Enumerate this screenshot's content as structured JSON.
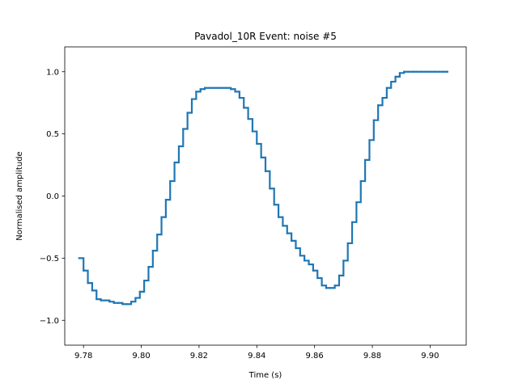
{
  "chart_data": {
    "type": "line",
    "title": "Pavadol_10R Event: noise #5",
    "xlabel": "Time (s)",
    "ylabel": "Normalised amplitude",
    "xlim": [
      9.7735,
      9.9125
    ],
    "ylim": [
      -1.2,
      1.2
    ],
    "xticks": [
      9.78,
      9.8,
      9.82,
      9.84,
      9.86,
      9.88,
      9.9
    ],
    "xtick_labels": [
      "9.78",
      "9.80",
      "9.82",
      "9.84",
      "9.86",
      "9.88",
      "9.90"
    ],
    "yticks": [
      -1.0,
      -0.5,
      0.0,
      0.5,
      1.0
    ],
    "ytick_labels": [
      "−1.0",
      "−0.5",
      "0.0",
      "0.5",
      "1.0"
    ],
    "grid": false,
    "series": [
      {
        "color": "#1f77b4",
        "x": [
          9.7785,
          9.78,
          9.7815,
          9.783,
          9.7845,
          9.786,
          9.7875,
          9.789,
          9.7905,
          9.792,
          9.7935,
          9.795,
          9.7965,
          9.798,
          9.7995,
          9.801,
          9.8025,
          9.804,
          9.8055,
          9.807,
          9.8085,
          9.81,
          9.8115,
          9.813,
          9.8145,
          9.816,
          9.8175,
          9.819,
          9.8205,
          9.822,
          9.8235,
          9.825,
          9.8265,
          9.828,
          9.8295,
          9.831,
          9.8325,
          9.834,
          9.8355,
          9.837,
          9.8385,
          9.84,
          9.8415,
          9.843,
          9.8445,
          9.846,
          9.8475,
          9.849,
          9.8505,
          9.852,
          9.8535,
          9.855,
          9.8565,
          9.858,
          9.8595,
          9.861,
          9.8625,
          9.864,
          9.8655,
          9.867,
          9.8685,
          9.87,
          9.8715,
          9.873,
          9.8745,
          9.876,
          9.8775,
          9.879,
          9.8805,
          9.882,
          9.8835,
          9.885,
          9.8865,
          9.888,
          9.8895,
          9.891,
          9.8925,
          9.894,
          9.8955,
          9.897,
          9.8985,
          9.9,
          9.9015,
          9.903,
          9.9045,
          9.906
        ],
        "values": [
          -0.5,
          -0.6,
          -0.7,
          -0.76,
          -0.83,
          -0.84,
          -0.84,
          -0.85,
          -0.86,
          -0.86,
          -0.87,
          -0.87,
          -0.85,
          -0.82,
          -0.77,
          -0.68,
          -0.57,
          -0.44,
          -0.31,
          -0.17,
          -0.03,
          0.12,
          0.27,
          0.4,
          0.54,
          0.67,
          0.78,
          0.84,
          0.86,
          0.87,
          0.87,
          0.87,
          0.87,
          0.87,
          0.87,
          0.86,
          0.84,
          0.79,
          0.71,
          0.62,
          0.52,
          0.42,
          0.31,
          0.2,
          0.06,
          -0.07,
          -0.17,
          -0.24,
          -0.3,
          -0.36,
          -0.42,
          -0.48,
          -0.52,
          -0.55,
          -0.6,
          -0.66,
          -0.72,
          -0.74,
          -0.74,
          -0.72,
          -0.64,
          -0.52,
          -0.38,
          -0.21,
          -0.05,
          0.12,
          0.29,
          0.45,
          0.61,
          0.73,
          0.79,
          0.87,
          0.92,
          0.96,
          0.99,
          1.0,
          1.0,
          1.0,
          1.0,
          1.0,
          1.0,
          1.0,
          1.0,
          1.0,
          1.0,
          1.0
        ]
      }
    ]
  }
}
